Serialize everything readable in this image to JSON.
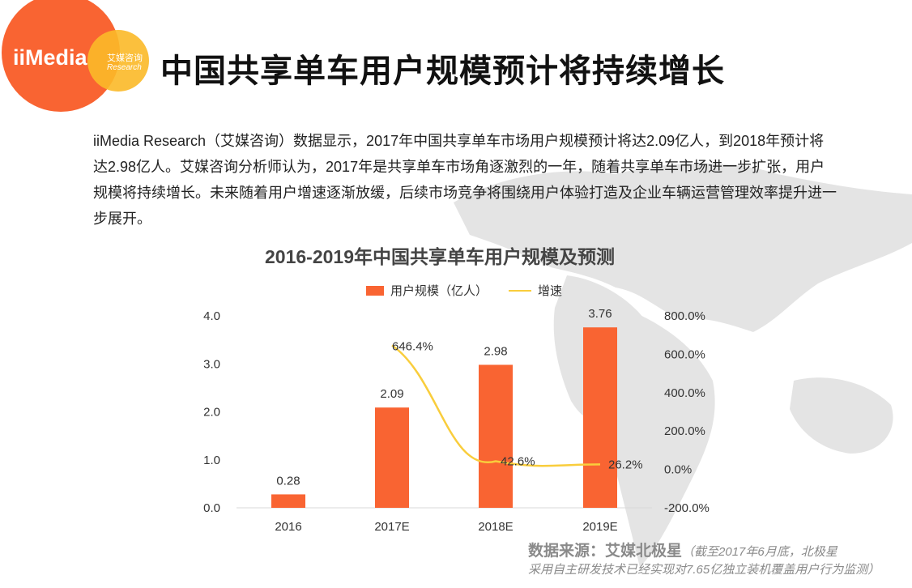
{
  "header": {
    "logo_text": "iiMedia",
    "logo_cn": "艾媒咨询",
    "logo_en": "Research",
    "title": "中国共享单车用户规模预计将持续增长"
  },
  "description": "iiMedia Research（艾媒咨询）数据显示，2017年中国共享单车市场用户规模预计将达2.09亿人，到2018年预计将达2.98亿人。艾媒咨询分析师认为，2017年是共享单车市场角逐激烈的一年，随着共享单车市场进一步扩张，用户规模将持续增长。未来随着用户增速逐渐放缓，后续市场竞争将围绕用户体验打造及企业车辆运营管理效率提升进一步展开。",
  "chart_data": {
    "type": "bar",
    "title": "2016-2019年中国共享单车用户规模及预测",
    "categories": [
      "2016",
      "2017E",
      "2018E",
      "2019E"
    ],
    "series": [
      {
        "name": "用户规模（亿人）",
        "type": "bar",
        "axis": "left",
        "color": "#f96432",
        "values": [
          0.28,
          2.09,
          2.98,
          3.76
        ],
        "labels": [
          "0.28",
          "2.09",
          "2.98",
          "3.76"
        ]
      },
      {
        "name": "增速",
        "type": "line",
        "axis": "right",
        "color": "#f9cd3c",
        "values": [
          null,
          646.4,
          42.6,
          26.2
        ],
        "labels": [
          "",
          "646.4%",
          "42.6%",
          "26.2%"
        ]
      }
    ],
    "left_axis": {
      "range": [
        0,
        4
      ],
      "ticks": [
        "0.0",
        "1.0",
        "2.0",
        "3.0",
        "4.0"
      ]
    },
    "right_axis": {
      "range": [
        -200,
        800
      ],
      "ticks": [
        "-200.0%",
        "0.0%",
        "200.0%",
        "400.0%",
        "600.0%",
        "800.0%"
      ]
    },
    "legend": "top-center",
    "grid": false
  },
  "source": {
    "label": "数据来源：艾媒北极星",
    "note_line1": "（截至2017年6月底，北极星",
    "note_line2": "采用自主研发技术已经实现对7.65亿独立装机覆盖用户行为监测）"
  }
}
